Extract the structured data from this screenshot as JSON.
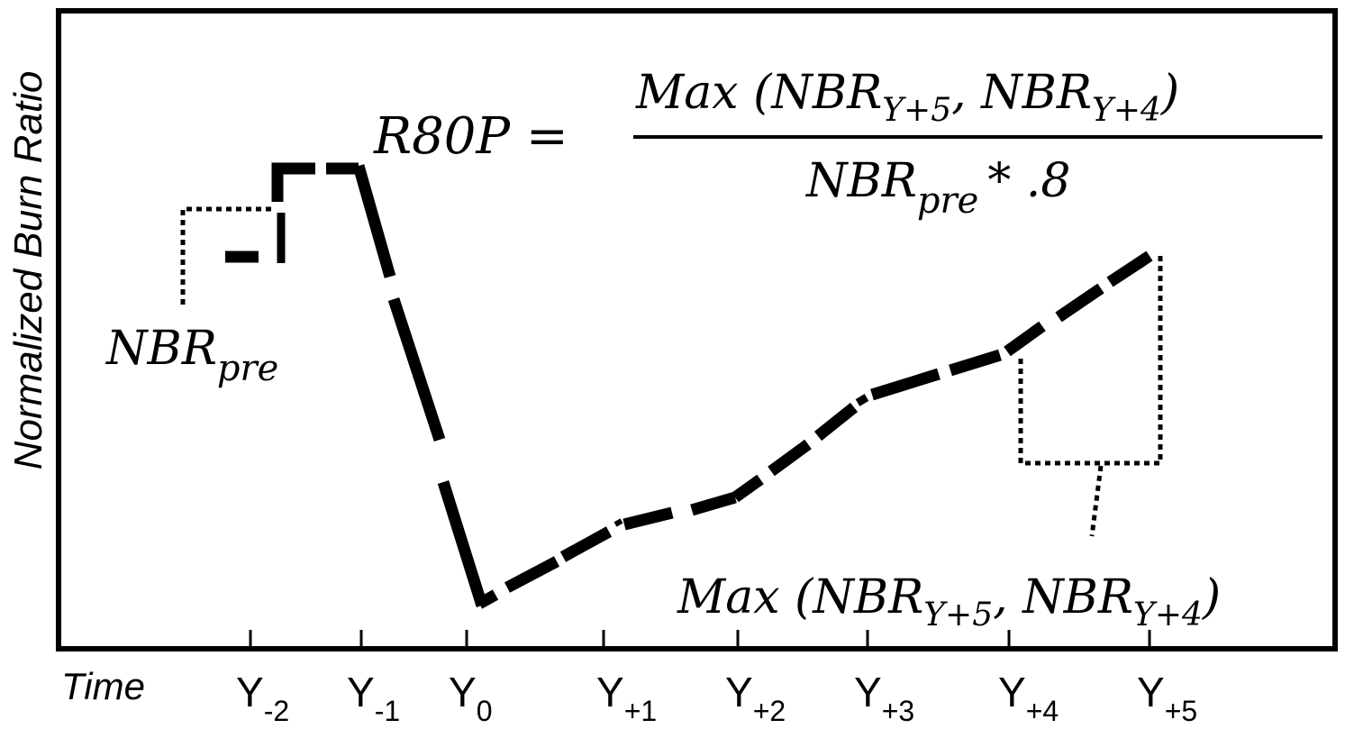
{
  "y_axis_label": "Normalized Burn Ratio",
  "x_axis_label": "Time",
  "ticks": [
    {
      "base": "Y",
      "sub": "-2"
    },
    {
      "base": "Y",
      "sub": "-1"
    },
    {
      "base": "Y",
      "sub": "0"
    },
    {
      "base": "Y",
      "sub": "+1"
    },
    {
      "base": "Y",
      "sub": "+2"
    },
    {
      "base": "Y",
      "sub": "+3"
    },
    {
      "base": "Y",
      "sub": "+4"
    },
    {
      "base": "Y",
      "sub": "+5"
    }
  ],
  "formula": {
    "lhs": "R80P =",
    "numerator": {
      "prefix": "Max (NBR",
      "sub1": "Y+5",
      "mid": ", NBR",
      "sub2": "Y+4",
      "suffix": ")"
    },
    "denominator": {
      "base": "NBR",
      "sub": "pre",
      "suffix": "* .8"
    }
  },
  "nbr_pre_label": {
    "base": "NBR",
    "sub": "pre"
  },
  "max_label": {
    "prefix": "Max (NBR",
    "sub1": "Y+5",
    "mid": ", NBR",
    "sub2": "Y+4",
    "suffix": ")"
  }
}
